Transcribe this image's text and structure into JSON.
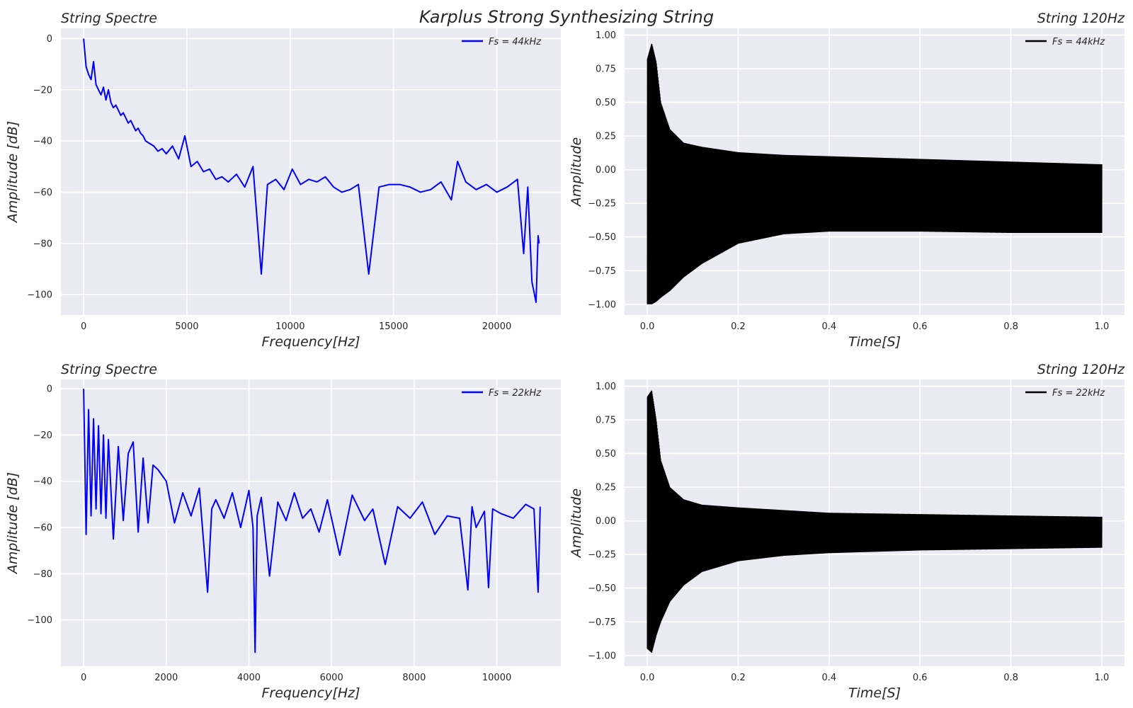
{
  "figure": {
    "suptitle": "Karplus Strong Synthesizing String"
  },
  "chart_data": [
    {
      "id": "spectrum_44k",
      "type": "line",
      "title_left": "String Spectre",
      "title_right": "",
      "xlabel": "Frequency[Hz]",
      "ylabel": "Amplitude [dB]",
      "xlim": [
        -1100,
        23100
      ],
      "ylim": [
        -108,
        4
      ],
      "xticks": [
        0,
        5000,
        10000,
        15000,
        20000
      ],
      "xtick_labels": [
        "0",
        "5000",
        "10000",
        "15000",
        "20000"
      ],
      "yticks": [
        0,
        -20,
        -40,
        -60,
        -80,
        -100
      ],
      "ytick_labels": [
        "0",
        "−20",
        "−40",
        "−60",
        "−80",
        "−100"
      ],
      "grid": true,
      "legend_position": "upper right",
      "series": [
        {
          "name": "Fs = 44kHz",
          "color": "#0000ff",
          "x": [
            0,
            120,
            240,
            360,
            480,
            600,
            720,
            840,
            960,
            1080,
            1200,
            1320,
            1440,
            1560,
            1680,
            1800,
            1920,
            2040,
            2160,
            2280,
            2400,
            2520,
            2640,
            2760,
            2880,
            3000,
            3200,
            3400,
            3600,
            3800,
            4000,
            4300,
            4600,
            4900,
            5200,
            5500,
            5800,
            6100,
            6400,
            6700,
            7000,
            7400,
            7800,
            8200,
            8600,
            8900,
            9300,
            9700,
            10100,
            10500,
            10900,
            11300,
            11700,
            12100,
            12500,
            12900,
            13300,
            13800,
            14300,
            14800,
            15300,
            15800,
            16300,
            16800,
            17300,
            17800,
            18100,
            18500,
            19000,
            19500,
            20000,
            20500,
            21000,
            21300,
            21500,
            21700,
            21900,
            22000,
            22050
          ],
          "y": [
            0,
            -11,
            -14,
            -16,
            -9,
            -18,
            -20,
            -22,
            -19,
            -24,
            -20,
            -25,
            -27,
            -26,
            -28,
            -30,
            -29,
            -31,
            -33,
            -32,
            -34,
            -36,
            -35,
            -37,
            -38,
            -40,
            -41,
            -42,
            -44,
            -43,
            -45,
            -42,
            -47,
            -38,
            -50,
            -48,
            -52,
            -51,
            -55,
            -54,
            -56,
            -53,
            -58,
            -50,
            -92,
            -57,
            -55,
            -59,
            -51,
            -57,
            -55,
            -56,
            -54,
            -58,
            -60,
            -59,
            -57,
            -92,
            -58,
            -57,
            -57,
            -58,
            -60,
            -59,
            -56,
            -63,
            -48,
            -56,
            -59,
            -57,
            -60,
            -58,
            -55,
            -84,
            -58,
            -95,
            -103,
            -77,
            -80
          ]
        }
      ]
    },
    {
      "id": "waveform_44k",
      "type": "line",
      "title_left": "",
      "title_right": "String 120Hz",
      "xlabel": "Time[S]",
      "ylabel": "Amplitude",
      "xlim": [
        -0.05,
        1.05
      ],
      "ylim": [
        -1.08,
        1.05
      ],
      "xticks": [
        0.0,
        0.2,
        0.4,
        0.6,
        0.8,
        1.0
      ],
      "xtick_labels": [
        "0.0",
        "0.2",
        "0.4",
        "0.6",
        "0.8",
        "1.0"
      ],
      "yticks": [
        1.0,
        0.75,
        0.5,
        0.25,
        0.0,
        -0.25,
        -0.5,
        -0.75,
        -1.0
      ],
      "ytick_labels": [
        "1.00",
        "0.75",
        "0.50",
        "0.25",
        "0.00",
        "−0.25",
        "−0.50",
        "−0.75",
        "−1.00"
      ],
      "grid": true,
      "legend_position": "upper right",
      "envelope": {
        "time": [
          0.0,
          0.01,
          0.02,
          0.03,
          0.05,
          0.08,
          0.12,
          0.2,
          0.3,
          0.4,
          0.6,
          0.8,
          1.0
        ],
        "upper": [
          0.82,
          0.94,
          0.8,
          0.5,
          0.3,
          0.2,
          0.17,
          0.13,
          0.11,
          0.1,
          0.08,
          0.06,
          0.04
        ],
        "lower": [
          -1.0,
          -1.0,
          -0.98,
          -0.95,
          -0.9,
          -0.8,
          -0.7,
          -0.55,
          -0.48,
          -0.46,
          -0.46,
          -0.47,
          -0.47
        ]
      },
      "series": [
        {
          "name": "Fs = 44kHz",
          "color": "#000000"
        }
      ]
    },
    {
      "id": "spectrum_22k",
      "type": "line",
      "title_left": "String Spectre",
      "title_right": "",
      "xlabel": "Frequency[Hz]",
      "ylabel": "Amplitude [dB]",
      "xlim": [
        -550,
        11550
      ],
      "ylim": [
        -120,
        4
      ],
      "xticks": [
        0,
        2000,
        4000,
        6000,
        8000,
        10000
      ],
      "xtick_labels": [
        "0",
        "2000",
        "4000",
        "6000",
        "8000",
        "10000"
      ],
      "yticks": [
        0,
        -20,
        -40,
        -60,
        -80,
        -100
      ],
      "ytick_labels": [
        "0",
        "−20",
        "−40",
        "−60",
        "−80",
        "−100"
      ],
      "grid": true,
      "legend_position": "upper right",
      "series": [
        {
          "name": "Fs = 22kHz",
          "color": "#0000ff",
          "x": [
            0,
            60,
            120,
            180,
            240,
            300,
            360,
            420,
            480,
            540,
            600,
            720,
            840,
            960,
            1080,
            1200,
            1320,
            1440,
            1560,
            1680,
            1800,
            2000,
            2200,
            2400,
            2600,
            2800,
            3000,
            3100,
            3200,
            3400,
            3600,
            3800,
            4000,
            4100,
            4150,
            4200,
            4300,
            4500,
            4700,
            4900,
            5100,
            5300,
            5500,
            5700,
            5900,
            6200,
            6500,
            6800,
            7000,
            7300,
            7600,
            7900,
            8200,
            8500,
            8800,
            9100,
            9300,
            9400,
            9500,
            9700,
            9800,
            9900,
            10100,
            10400,
            10700,
            10900,
            11000,
            11050
          ],
          "y": [
            0,
            -63,
            -9,
            -55,
            -13,
            -52,
            -16,
            -54,
            -20,
            -56,
            -22,
            -65,
            -25,
            -57,
            -28,
            -23,
            -62,
            -30,
            -58,
            -33,
            -35,
            -40,
            -58,
            -45,
            -55,
            -43,
            -88,
            -52,
            -48,
            -56,
            -45,
            -60,
            -44,
            -60,
            -114,
            -55,
            -47,
            -81,
            -49,
            -57,
            -45,
            -56,
            -52,
            -62,
            -48,
            -72,
            -46,
            -57,
            -52,
            -76,
            -51,
            -56,
            -49,
            -63,
            -55,
            -56,
            -87,
            -51,
            -60,
            -53,
            -86,
            -52,
            -54,
            -56,
            -50,
            -52,
            -88,
            -51
          ]
        }
      ]
    },
    {
      "id": "waveform_22k",
      "type": "line",
      "title_left": "",
      "title_right": "String 120Hz",
      "xlabel": "Time[S]",
      "ylabel": "Amplitude",
      "xlim": [
        -0.05,
        1.05
      ],
      "ylim": [
        -1.08,
        1.05
      ],
      "xticks": [
        0.0,
        0.2,
        0.4,
        0.6,
        0.8,
        1.0
      ],
      "xtick_labels": [
        "0.0",
        "0.2",
        "0.4",
        "0.6",
        "0.8",
        "1.0"
      ],
      "yticks": [
        1.0,
        0.75,
        0.5,
        0.25,
        0.0,
        -0.25,
        -0.5,
        -0.75,
        -1.0
      ],
      "ytick_labels": [
        "1.00",
        "0.75",
        "0.50",
        "0.25",
        "0.00",
        "−0.25",
        "−0.50",
        "−0.75",
        "−1.00"
      ],
      "grid": true,
      "legend_position": "upper right",
      "envelope": {
        "time": [
          0.0,
          0.01,
          0.02,
          0.03,
          0.05,
          0.08,
          0.12,
          0.2,
          0.3,
          0.4,
          0.6,
          0.8,
          1.0
        ],
        "upper": [
          0.92,
          0.97,
          0.75,
          0.45,
          0.25,
          0.16,
          0.12,
          0.1,
          0.08,
          0.06,
          0.05,
          0.04,
          0.03
        ],
        "lower": [
          -0.95,
          -0.98,
          -0.85,
          -0.75,
          -0.6,
          -0.48,
          -0.38,
          -0.3,
          -0.26,
          -0.24,
          -0.22,
          -0.21,
          -0.2
        ]
      },
      "series": [
        {
          "name": "Fs = 22kHz",
          "color": "#000000"
        }
      ]
    }
  ]
}
